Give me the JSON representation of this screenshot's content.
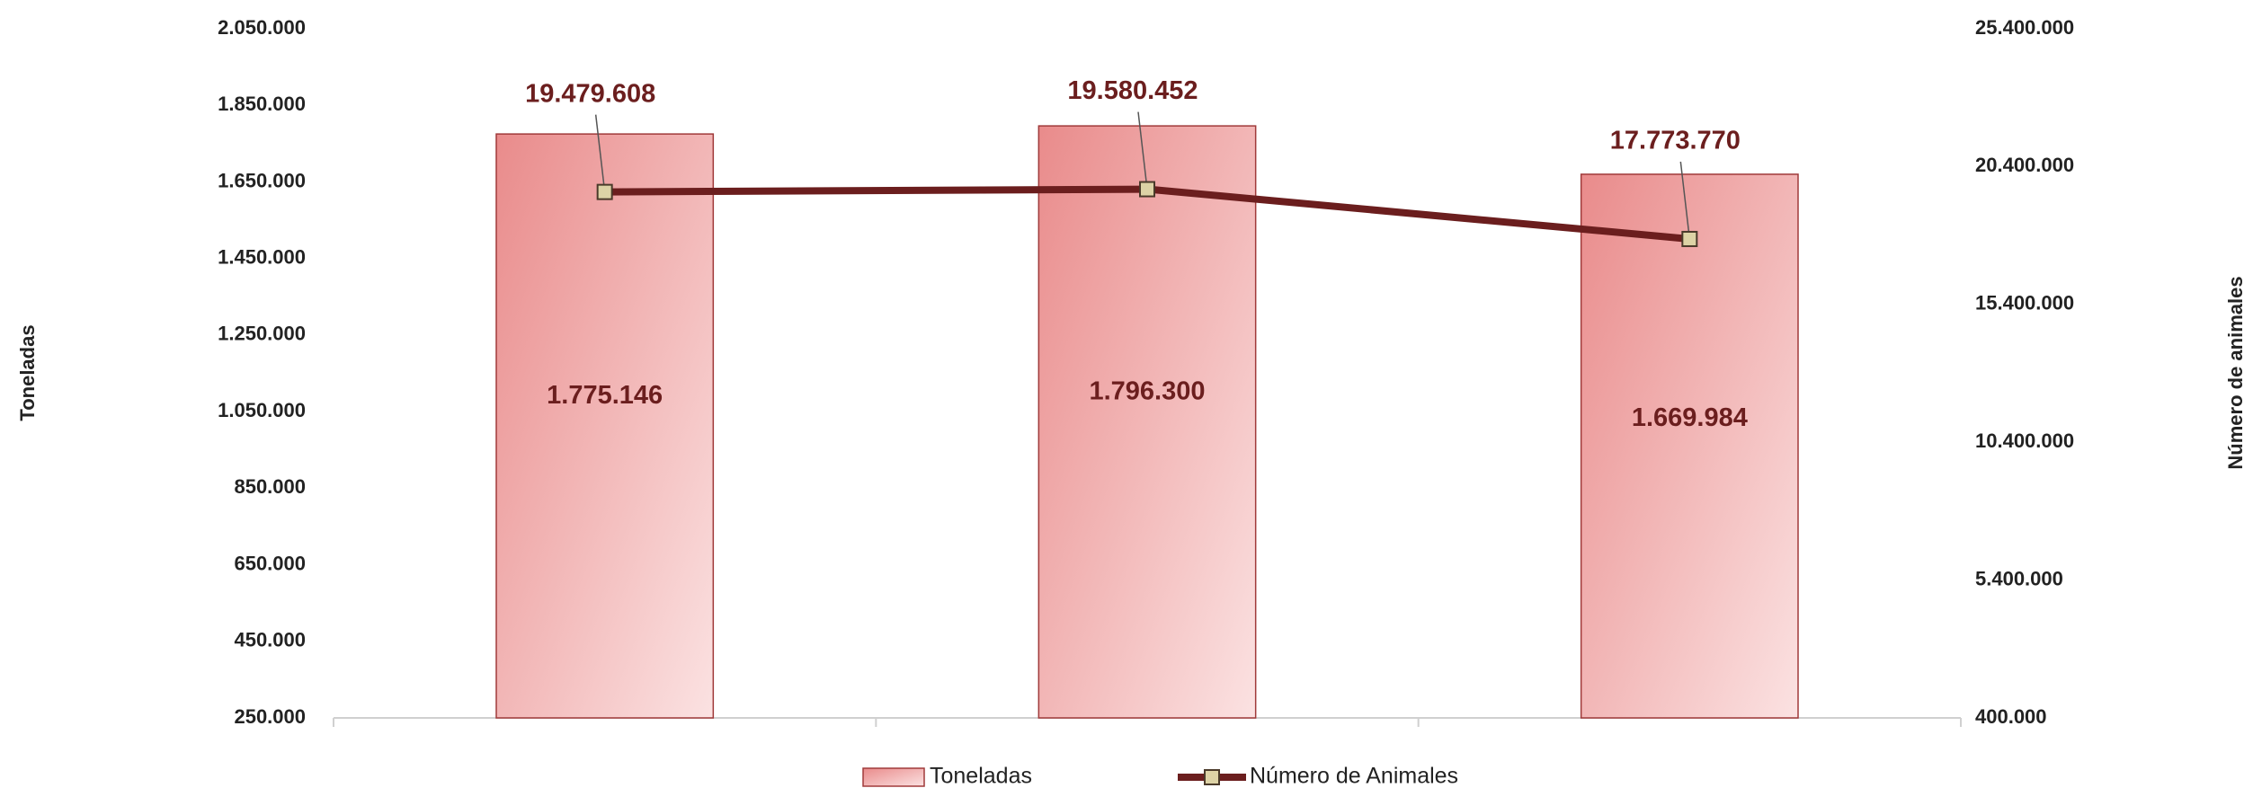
{
  "chart_data": {
    "type": "bar",
    "categories": [
      null,
      null,
      null
    ],
    "ylabel": "Toneladas",
    "y2label": "Número de animales",
    "series": [
      {
        "name": "Toneladas",
        "type": "bar",
        "color": "#e98b8b",
        "values": [
          1775146,
          1796300,
          1669984
        ],
        "value_labels": [
          "1.775.146",
          "1.796.300",
          "1.669.984"
        ]
      },
      {
        "name": "Número de Animales",
        "type": "line",
        "axis": "y2",
        "color": "#6b1e1e",
        "values": [
          19479608,
          19580452,
          17773770
        ],
        "value_labels": [
          "19.479.608",
          "19.580.452",
          "17.773.770"
        ]
      }
    ],
    "ylim": [
      250000,
      2050000
    ],
    "yticks": [
      {
        "value": 250000,
        "label": "250.000"
      },
      {
        "value": 450000,
        "label": "450.000"
      },
      {
        "value": 650000,
        "label": "650.000"
      },
      {
        "value": 850000,
        "label": "850.000"
      },
      {
        "value": 1050000,
        "label": "1.050.000"
      },
      {
        "value": 1250000,
        "label": "1.250.000"
      },
      {
        "value": 1450000,
        "label": "1.450.000"
      },
      {
        "value": 1650000,
        "label": "1.650.000"
      },
      {
        "value": 1850000,
        "label": "1.850.000"
      },
      {
        "value": 2050000,
        "label": "2.050.000"
      }
    ],
    "y2lim": [
      400000,
      25400000
    ],
    "y2ticks": [
      {
        "value": 400000,
        "label": "400.000"
      },
      {
        "value": 5400000,
        "label": "5.400.000"
      },
      {
        "value": 10400000,
        "label": "10.400.000"
      },
      {
        "value": 15400000,
        "label": "15.400.000"
      },
      {
        "value": 20400000,
        "label": "20.400.000"
      },
      {
        "value": 25400000,
        "label": "25.400.000"
      }
    ],
    "grid": false,
    "legend": "bottom"
  }
}
